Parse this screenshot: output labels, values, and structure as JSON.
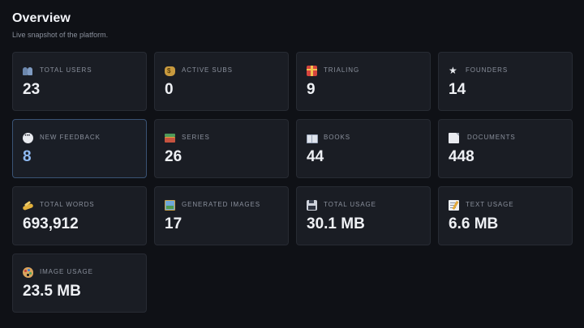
{
  "header": {
    "title": "Overview",
    "subtitle": "Live snapshot of the platform."
  },
  "stats": [
    {
      "label": "Total Users",
      "value": "23",
      "icon": "users-icon"
    },
    {
      "label": "Active Subs",
      "value": "0",
      "icon": "money-bag-icon"
    },
    {
      "label": "Trialing",
      "value": "9",
      "icon": "gift-icon"
    },
    {
      "label": "Founders",
      "value": "14",
      "icon": "star-icon"
    },
    {
      "label": "New Feedback",
      "value": "8",
      "icon": "speech-bubble-icon",
      "highlighted": true,
      "accent": "#8fbaf2"
    },
    {
      "label": "Series",
      "value": "26",
      "icon": "books-icon"
    },
    {
      "label": "Books",
      "value": "44",
      "icon": "open-book-icon"
    },
    {
      "label": "Documents",
      "value": "448",
      "icon": "document-icon"
    },
    {
      "label": "Total Words",
      "value": "693,912",
      "icon": "writing-hand-icon"
    },
    {
      "label": "Generated Images",
      "value": "17",
      "icon": "framed-picture-icon"
    },
    {
      "label": "Total Usage",
      "value": "30.1 MB",
      "icon": "floppy-disk-icon"
    },
    {
      "label": "Text Usage",
      "value": "6.6 MB",
      "icon": "memo-icon"
    },
    {
      "label": "Image Usage",
      "value": "23.5 MB",
      "icon": "palette-icon"
    }
  ],
  "colors": {
    "background": "#0f1116",
    "card": "#1a1d24",
    "card_border": "#272b33",
    "highlight_border": "#3a5374"
  }
}
